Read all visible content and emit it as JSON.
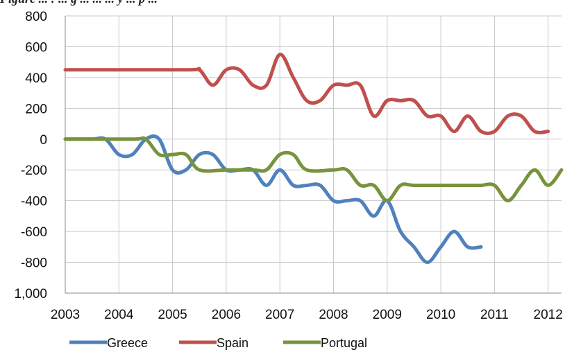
{
  "caption": "Figure ... : ... g ... ... ... y ... p ...",
  "chart_data": {
    "type": "line",
    "x_ticks": [
      "2003",
      "2004",
      "2005",
      "2006",
      "2007",
      "2008",
      "2009",
      "2010",
      "2011",
      "2012"
    ],
    "y_ticks": [
      "800",
      "600",
      "400",
      "200",
      "0",
      "-200",
      "-400",
      "-600",
      "-800",
      "1,000"
    ],
    "ylim": [
      -1000,
      800
    ],
    "xlim": [
      2003,
      2012.25
    ],
    "grid": true,
    "legend_position": "bottom",
    "series": [
      {
        "name": "Greece",
        "color": "#4f81bd",
        "x": [
          2003.0,
          2003.5,
          2003.75,
          2004.0,
          2004.25,
          2004.5,
          2004.75,
          2005.0,
          2005.25,
          2005.5,
          2005.75,
          2006.0,
          2006.25,
          2006.5,
          2006.75,
          2007.0,
          2007.25,
          2007.5,
          2007.75,
          2008.0,
          2008.25,
          2008.5,
          2008.75,
          2009.0,
          2009.25,
          2009.5,
          2009.75,
          2010.0,
          2010.25,
          2010.5,
          2010.75
        ],
        "y": [
          0,
          0,
          0,
          -100,
          -100,
          0,
          0,
          -200,
          -200,
          -100,
          -100,
          -200,
          -200,
          -200,
          -300,
          -200,
          -300,
          -300,
          -300,
          -400,
          -400,
          -400,
          -500,
          -400,
          -600,
          -700,
          -800,
          -700,
          -600,
          -700,
          -700
        ]
      },
      {
        "name": "Spain",
        "color": "#c0504d",
        "x": [
          2003.0,
          2005.25,
          2005.5,
          2005.75,
          2006.0,
          2006.25,
          2006.5,
          2006.75,
          2007.0,
          2007.25,
          2007.5,
          2007.75,
          2008.0,
          2008.25,
          2008.5,
          2008.75,
          2009.0,
          2009.25,
          2009.5,
          2009.75,
          2010.0,
          2010.25,
          2010.5,
          2010.75,
          2011.0,
          2011.25,
          2011.5,
          2011.75,
          2012.0
        ],
        "y": [
          450,
          450,
          450,
          350,
          450,
          450,
          350,
          350,
          550,
          400,
          250,
          250,
          350,
          350,
          350,
          150,
          250,
          250,
          250,
          150,
          150,
          50,
          150,
          50,
          50,
          150,
          150,
          50,
          50
        ]
      },
      {
        "name": "Portugal",
        "color": "#77933c",
        "x": [
          2003.0,
          2004.25,
          2004.5,
          2004.75,
          2005.0,
          2005.25,
          2005.5,
          2006.0,
          2006.5,
          2006.75,
          2007.0,
          2007.25,
          2007.5,
          2008.0,
          2008.25,
          2008.5,
          2008.75,
          2009.0,
          2009.25,
          2009.5,
          2010.0,
          2010.5,
          2010.75,
          2011.0,
          2011.25,
          2011.5,
          2011.75,
          2012.0,
          2012.25
        ],
        "y": [
          0,
          0,
          0,
          -100,
          -100,
          -100,
          -200,
          -200,
          -200,
          -200,
          -100,
          -100,
          -200,
          -200,
          -200,
          -300,
          -300,
          -400,
          -300,
          -300,
          -300,
          -300,
          -300,
          -300,
          -400,
          -300,
          -200,
          -300,
          -200
        ]
      }
    ]
  }
}
